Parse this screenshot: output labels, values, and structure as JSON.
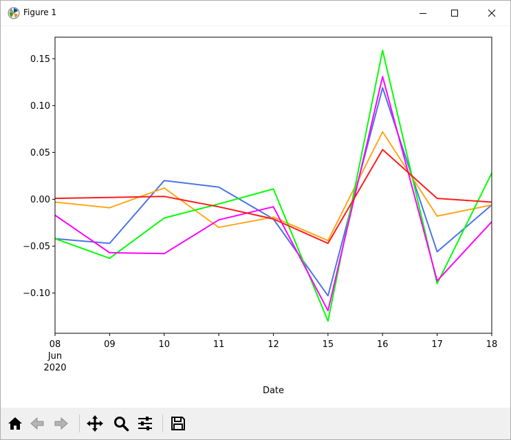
{
  "window": {
    "title": "Figure 1",
    "icons": {
      "app": "matplotlib-icon",
      "minimize": "minimize-icon",
      "maximize": "maximize-icon",
      "close": "close-icon"
    }
  },
  "toolbar": {
    "buttons": [
      {
        "name": "home",
        "icon": "home-icon"
      },
      {
        "name": "back",
        "icon": "arrow-left-icon"
      },
      {
        "name": "forward",
        "icon": "arrow-right-icon"
      },
      {
        "name": "pan",
        "icon": "move-icon"
      },
      {
        "name": "zoom",
        "icon": "magnifier-icon"
      },
      {
        "name": "configure",
        "icon": "sliders-icon"
      },
      {
        "name": "save",
        "icon": "floppy-disk-icon"
      }
    ]
  },
  "chart_data": {
    "type": "line",
    "xlabel": "Date",
    "ylabel": "",
    "title": "",
    "x": [
      "2020-06-08",
      "2020-06-09",
      "2020-06-10",
      "2020-06-11",
      "2020-06-12",
      "2020-06-15",
      "2020-06-16",
      "2020-06-17",
      "2020-06-18"
    ],
    "x_tick_labels": [
      "08",
      "09",
      "10",
      "11",
      "12",
      "15",
      "16",
      "17",
      "18"
    ],
    "x_tick_sublabels": [
      "Jun",
      "2020"
    ],
    "yticks": [
      -0.1,
      -0.05,
      0.0,
      0.05,
      0.1,
      0.15
    ],
    "ytick_labels": [
      "−0.10",
      "−0.05",
      "0.00",
      "0.05",
      "0.10",
      "0.15"
    ],
    "ylim": [
      -0.143,
      0.173
    ],
    "grid": false,
    "legend": "none",
    "series": [
      {
        "color": "#4a74e6",
        "values": [
          -0.042,
          -0.047,
          0.02,
          0.013,
          -0.021,
          -0.103,
          0.119,
          -0.056,
          -0.006
        ]
      },
      {
        "color": "#ffa61a",
        "values": [
          -0.003,
          -0.009,
          0.012,
          -0.03,
          -0.019,
          -0.044,
          0.072,
          -0.018,
          -0.006
        ]
      },
      {
        "color": "#00ff00",
        "values": [
          -0.042,
          -0.063,
          -0.02,
          -0.005,
          0.011,
          -0.13,
          0.159,
          -0.09,
          0.028
        ]
      },
      {
        "color": "#ff00ff",
        "values": [
          -0.017,
          -0.057,
          -0.058,
          -0.022,
          -0.008,
          -0.119,
          0.131,
          -0.087,
          -0.024
        ]
      },
      {
        "color": "#ff1a1a",
        "values": [
          0.001,
          0.002,
          0.003,
          -0.008,
          -0.021,
          -0.047,
          0.053,
          0.001,
          -0.003
        ]
      }
    ]
  }
}
